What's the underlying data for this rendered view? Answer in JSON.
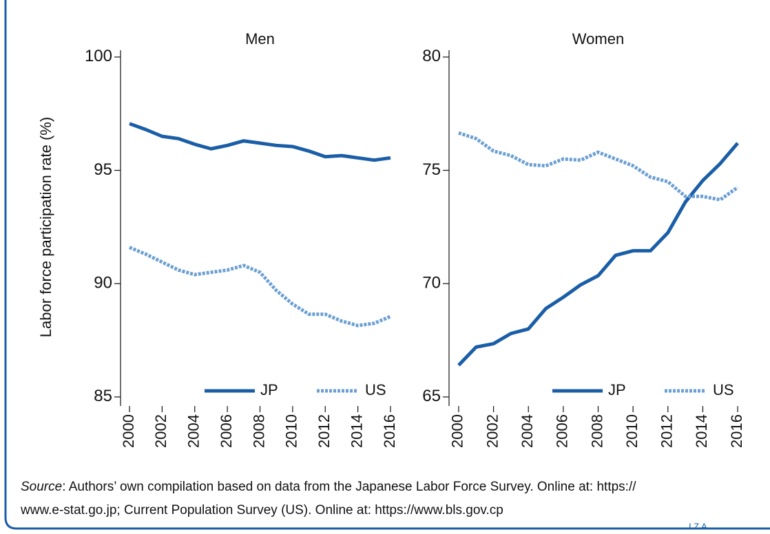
{
  "chart_data": [
    {
      "type": "line",
      "title": "Men",
      "ylabel": "Labor force participation rate (%)",
      "x": [
        2000,
        2001,
        2002,
        2003,
        2004,
        2005,
        2006,
        2007,
        2008,
        2009,
        2010,
        2011,
        2012,
        2013,
        2014,
        2015,
        2016
      ],
      "series": [
        {
          "name": "JP",
          "color": "#1a5ea8",
          "style": "solid",
          "values": [
            97.06,
            96.8,
            96.5,
            96.4,
            96.15,
            95.95,
            96.1,
            96.3,
            96.2,
            96.1,
            96.05,
            95.85,
            95.6,
            95.65,
            95.55,
            95.45,
            95.55
          ]
        },
        {
          "name": "US",
          "color": "#6a9fd4",
          "style": "dotted",
          "values": [
            91.6,
            91.3,
            90.95,
            90.6,
            90.4,
            90.5,
            90.6,
            90.8,
            90.5,
            89.7,
            89.1,
            88.65,
            88.65,
            88.35,
            88.15,
            88.25,
            88.55
          ]
        }
      ],
      "xlim": [
        1999.45,
        2016.55
      ],
      "xticks": [
        2000,
        2002,
        2004,
        2006,
        2008,
        2010,
        2012,
        2014,
        2016
      ],
      "ylim": [
        84.6,
        100.3
      ],
      "yticks": [
        85,
        90,
        95,
        100
      ],
      "grid": false,
      "legend": "lower right"
    },
    {
      "type": "line",
      "title": "Women",
      "x": [
        2000,
        2001,
        2002,
        2003,
        2004,
        2005,
        2006,
        2007,
        2008,
        2009,
        2010,
        2011,
        2012,
        2013,
        2014,
        2015,
        2016
      ],
      "series": [
        {
          "name": "JP",
          "color": "#1a5ea8",
          "style": "solid",
          "values": [
            66.4,
            67.2,
            67.35,
            67.8,
            68.0,
            68.9,
            69.4,
            69.95,
            70.35,
            71.25,
            71.45,
            71.45,
            72.25,
            73.6,
            74.55,
            75.3,
            76.2
          ]
        },
        {
          "name": "US",
          "color": "#6a9fd4",
          "style": "dotted",
          "values": [
            76.65,
            76.4,
            75.85,
            75.65,
            75.25,
            75.2,
            75.5,
            75.45,
            75.8,
            75.5,
            75.2,
            74.7,
            74.5,
            73.85,
            73.85,
            73.7,
            74.25
          ]
        }
      ],
      "xlim": [
        1999.45,
        2016.55
      ],
      "xticks": [
        2000,
        2002,
        2004,
        2006,
        2008,
        2010,
        2012,
        2014,
        2016
      ],
      "ylim": [
        64.6,
        80.3
      ],
      "yticks": [
        65,
        70,
        75,
        80
      ],
      "grid": false,
      "legend": "lower right"
    }
  ],
  "source_label": "Source",
  "source_lines": [
    ": Authors’ own compilation based on data from the Japanese Labor Force Survey. Online at: https://",
    "www.e-stat.go.jp; Current Population Survey (US). Online at: https://www.bls.gov.cp"
  ],
  "logo": "I Z A"
}
